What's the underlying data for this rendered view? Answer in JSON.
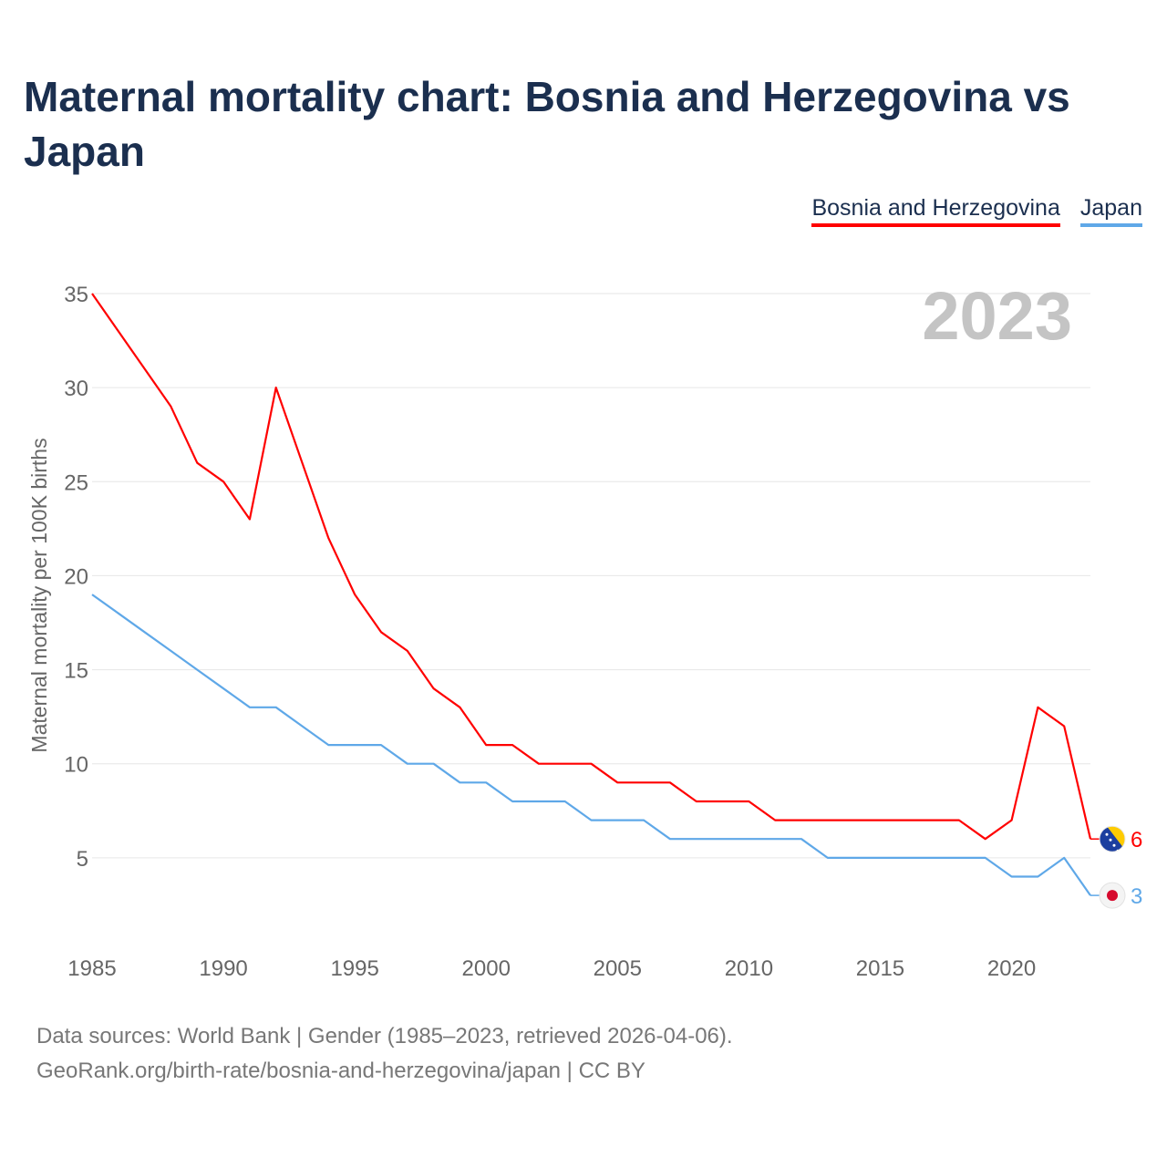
{
  "title": "Maternal mortality chart: Bosnia and Herzegovina vs Japan",
  "legend": [
    {
      "label": "Bosnia and Herzegovina",
      "color": "#ff0000"
    },
    {
      "label": "Japan",
      "color": "#5fa8e8"
    }
  ],
  "year_watermark": "2023",
  "chart_data": {
    "type": "line",
    "title": "Maternal mortality chart: Bosnia and Herzegovina vs Japan",
    "xlabel": "",
    "ylabel": "Maternal mortality per 100K births",
    "x": [
      1985,
      1986,
      1987,
      1988,
      1989,
      1990,
      1991,
      1992,
      1993,
      1994,
      1995,
      1996,
      1997,
      1998,
      1999,
      2000,
      2001,
      2002,
      2003,
      2004,
      2005,
      2006,
      2007,
      2008,
      2009,
      2010,
      2011,
      2012,
      2013,
      2014,
      2015,
      2016,
      2017,
      2018,
      2019,
      2020,
      2021,
      2022,
      2023
    ],
    "xlim": [
      1985,
      2023
    ],
    "ylim": [
      0,
      35
    ],
    "x_ticks": [
      1985,
      1990,
      1995,
      2000,
      2005,
      2010,
      2015,
      2020
    ],
    "y_ticks": [
      5,
      10,
      15,
      20,
      25,
      30,
      35
    ],
    "grid": true,
    "series": [
      {
        "name": "Bosnia and Herzegovina",
        "color": "#ff0000",
        "end_label": "6",
        "values": [
          35,
          33,
          31,
          29,
          26,
          25,
          23,
          30,
          26,
          22,
          19,
          17,
          16,
          14,
          13,
          11,
          11,
          10,
          10,
          10,
          9,
          9,
          9,
          8,
          8,
          8,
          7,
          7,
          7,
          7,
          7,
          7,
          7,
          7,
          6,
          7,
          13,
          12,
          6
        ]
      },
      {
        "name": "Japan",
        "color": "#5fa8e8",
        "end_label": "3",
        "values": [
          19,
          18,
          17,
          16,
          15,
          14,
          13,
          13,
          12,
          11,
          11,
          11,
          10,
          10,
          9,
          9,
          8,
          8,
          8,
          7,
          7,
          7,
          6,
          6,
          6,
          6,
          6,
          6,
          5,
          5,
          5,
          5,
          5,
          5,
          5,
          4,
          4,
          5,
          3
        ]
      }
    ]
  },
  "source": {
    "line1": "Data sources: World Bank | Gender (1985–2023, retrieved 2026-04-06).",
    "line2": "GeoRank.org/birth-rate/bosnia-and-herzegovina/japan | CC BY"
  }
}
